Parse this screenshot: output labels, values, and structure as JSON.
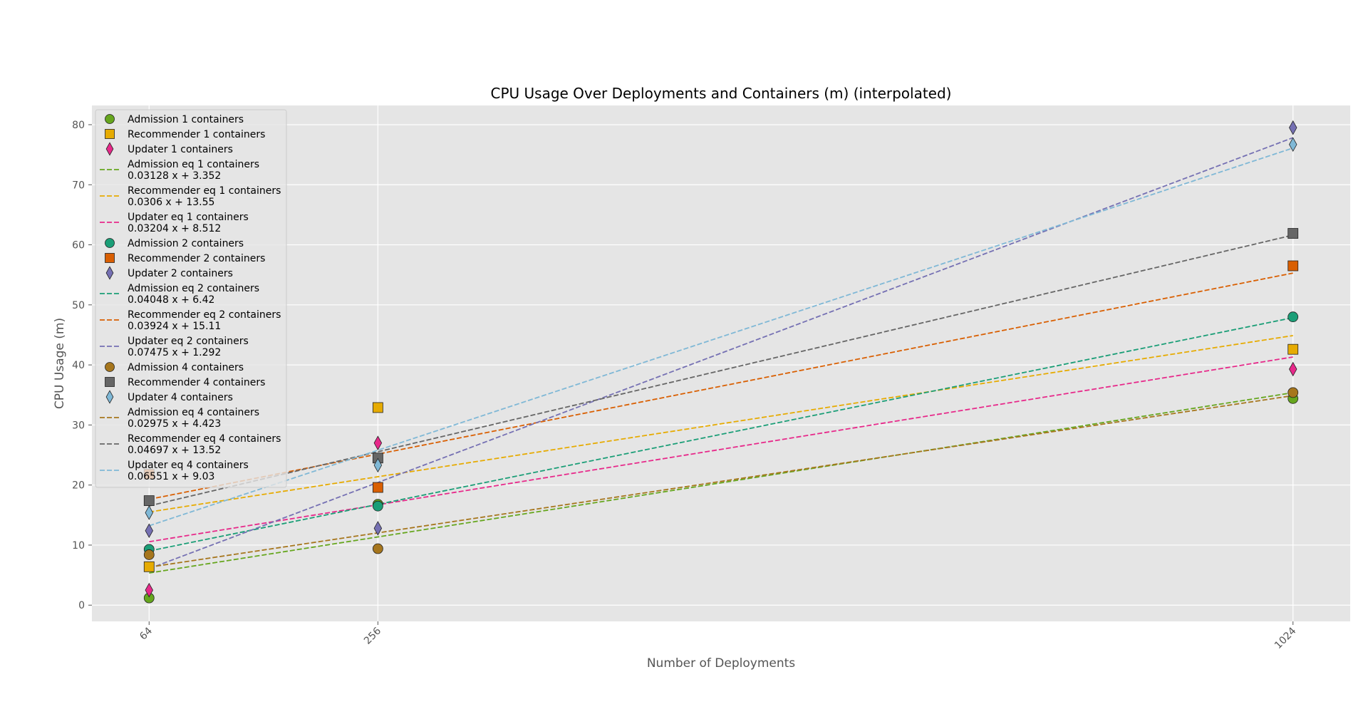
{
  "chart_data": {
    "type": "scatter",
    "title": "CPU Usage Over Deployments and Containers (m) (interpolated)",
    "xlabel": "Number of Deployments",
    "ylabel": "CPU Usage (m)",
    "x_ticks": [
      "64",
      "256",
      "1024"
    ],
    "x_values": [
      64,
      256,
      1024
    ],
    "y_ticks": [
      "0",
      "10",
      "20",
      "30",
      "40",
      "50",
      "60",
      "70",
      "80"
    ],
    "ylim": [
      -2.7,
      83.2
    ],
    "xlim": [
      16,
      1072
    ],
    "grid": true,
    "legend_position": "upper-left",
    "series": [
      {
        "name": "Admission 1 containers",
        "kind": "points",
        "marker": "circle",
        "color": "#66a61e",
        "y": [
          1.2,
          16.8,
          34.4
        ]
      },
      {
        "name": "Recommender 1 containers",
        "kind": "points",
        "marker": "square",
        "color": "#e6ab02",
        "y": [
          6.4,
          32.9,
          42.6
        ]
      },
      {
        "name": "Updater 1 containers",
        "kind": "points",
        "marker": "diamond",
        "color": "#e7298a",
        "y": [
          2.5,
          27.0,
          39.3
        ]
      },
      {
        "name": "Admission eq 1 containers",
        "equation": "0.03128 x + 3.352",
        "kind": "fit",
        "color": "#66a61e",
        "slope": 0.03128,
        "intercept": 3.352
      },
      {
        "name": "Recommender eq 1 containers",
        "equation": "0.0306 x + 13.55",
        "kind": "fit",
        "color": "#e6ab02",
        "slope": 0.0306,
        "intercept": 13.55
      },
      {
        "name": "Updater eq 1 containers",
        "equation": "0.03204 x + 8.512",
        "kind": "fit",
        "color": "#e7298a",
        "slope": 0.03204,
        "intercept": 8.512
      },
      {
        "name": "Admission 2 containers",
        "kind": "points",
        "marker": "circle",
        "color": "#1b9e77",
        "y": [
          9.3,
          16.5,
          48.0
        ]
      },
      {
        "name": "Recommender 2 containers",
        "kind": "points",
        "marker": "square",
        "color": "#d95f02",
        "y": [
          21.8,
          19.6,
          56.5
        ]
      },
      {
        "name": "Updater 2 containers",
        "kind": "points",
        "marker": "diamond",
        "color": "#7570b3",
        "y": [
          12.4,
          12.8,
          79.5
        ]
      },
      {
        "name": "Admission eq 2 containers",
        "equation": "0.04048 x + 6.42",
        "kind": "fit",
        "color": "#1b9e77",
        "slope": 0.04048,
        "intercept": 6.42
      },
      {
        "name": "Recommender eq 2 containers",
        "equation": "0.03924 x + 15.11",
        "kind": "fit",
        "color": "#d95f02",
        "slope": 0.03924,
        "intercept": 15.11
      },
      {
        "name": "Updater eq 2 containers",
        "equation": "0.07475 x + 1.292",
        "kind": "fit",
        "color": "#7570b3",
        "slope": 0.07475,
        "intercept": 1.292
      },
      {
        "name": "Admission 4 containers",
        "kind": "points",
        "marker": "circle",
        "color": "#a6761d",
        "y": [
          8.4,
          9.4,
          35.4
        ]
      },
      {
        "name": "Recommender 4 containers",
        "kind": "points",
        "marker": "square",
        "color": "#666666",
        "y": [
          17.4,
          24.5,
          61.9
        ]
      },
      {
        "name": "Updater 4 containers",
        "kind": "points",
        "marker": "diamond",
        "color": "#7fb8d6",
        "y": [
          15.4,
          23.3,
          76.7
        ]
      },
      {
        "name": "Admission eq 4 containers",
        "equation": "0.02975 x + 4.423",
        "kind": "fit",
        "color": "#a6761d",
        "slope": 0.02975,
        "intercept": 4.423
      },
      {
        "name": "Recommender eq 4 containers",
        "equation": "0.04697 x + 13.52",
        "kind": "fit",
        "color": "#666666",
        "slope": 0.04697,
        "intercept": 13.52
      },
      {
        "name": "Updater eq 4 containers",
        "equation": "0.06551 x + 9.03",
        "kind": "fit",
        "color": "#7fb8d6",
        "slope": 0.06551,
        "intercept": 9.03
      }
    ]
  }
}
